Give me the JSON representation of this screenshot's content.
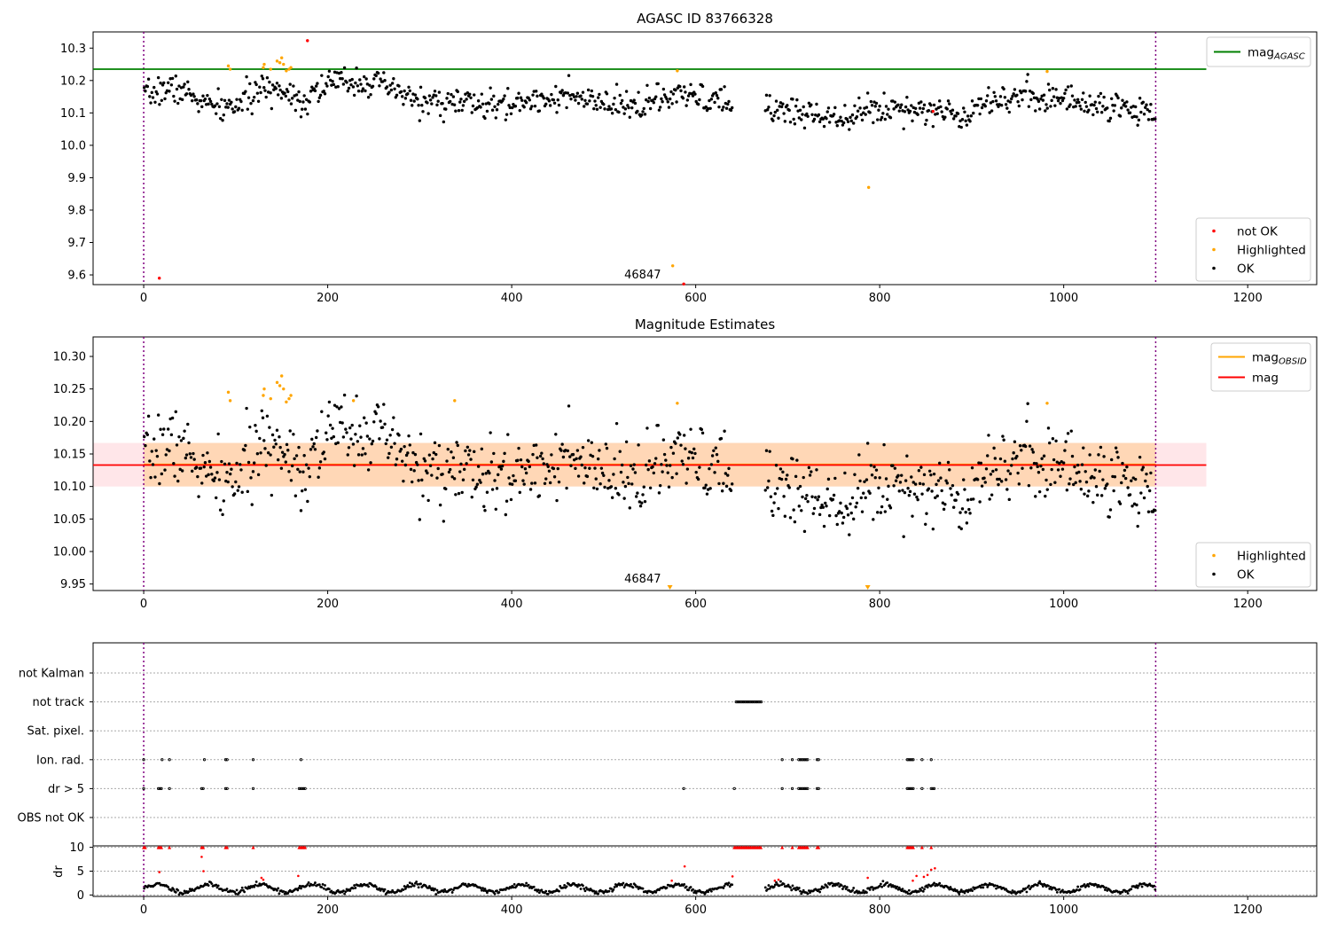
{
  "chart_data": [
    {
      "type": "scatter",
      "title": "AGASC ID 83766328",
      "xlim": [
        -55,
        1275
      ],
      "ylim": [
        9.57,
        10.35
      ],
      "xticks": [
        0,
        200,
        400,
        600,
        800,
        1000,
        1200
      ],
      "yticks": [
        9.6,
        9.7,
        9.8,
        9.9,
        10.0,
        10.1,
        10.2,
        10.3
      ],
      "ytick_decimals": 1,
      "vlines": [
        0,
        1100
      ],
      "hlines": [
        {
          "name": "mag_AGASC",
          "y": 10.235,
          "x": [
            -55,
            1155
          ],
          "color": "#008000"
        }
      ],
      "legend_upper": [
        {
          "label": "mag",
          "sub": "AGASC",
          "kind": "line",
          "color": "#008000"
        }
      ],
      "legend_lower": [
        {
          "label": "not OK",
          "kind": "dot",
          "color": "#ff0000"
        },
        {
          "label": "Highlighted",
          "kind": "dot",
          "color": "#ffa500"
        },
        {
          "label": "OK",
          "kind": "dot",
          "color": "#000000"
        }
      ],
      "annotations": [
        {
          "text": "46847",
          "x": 570,
          "y": 9.6
        }
      ],
      "generated_ok": {
        "x_ranges": [
          [
            0,
            640
          ],
          [
            675,
            1100
          ]
        ],
        "count": 900,
        "base": 10.14,
        "noise": 0.04
      },
      "highlighted": [
        [
          92,
          10.245
        ],
        [
          94,
          10.235
        ],
        [
          130,
          10.24
        ],
        [
          131,
          10.25
        ],
        [
          138,
          10.235
        ],
        [
          145,
          10.26
        ],
        [
          148,
          10.255
        ],
        [
          150,
          10.27
        ],
        [
          152,
          10.25
        ],
        [
          155,
          10.23
        ],
        [
          158,
          10.235
        ],
        [
          160,
          10.24
        ],
        [
          575,
          9.628
        ],
        [
          580,
          10.23
        ],
        [
          788,
          9.87
        ],
        [
          982,
          10.228
        ]
      ],
      "not_ok": [
        [
          17,
          9.59
        ],
        [
          178,
          10.323
        ],
        [
          587,
          9.572
        ],
        [
          858,
          10.105
        ]
      ],
      "grid": false,
      "legend_placement": "upper right / lower right"
    },
    {
      "type": "scatter",
      "title": "Magnitude Estimates",
      "xlim": [
        -55,
        1275
      ],
      "ylim": [
        9.94,
        10.33
      ],
      "xticks": [
        0,
        200,
        400,
        600,
        800,
        1000,
        1200
      ],
      "yticks": [
        9.95,
        10.0,
        10.05,
        10.1,
        10.15,
        10.2,
        10.25,
        10.3
      ],
      "ytick_decimals": 2,
      "vlines": [
        0,
        1100
      ],
      "hlines": [
        {
          "name": "mag",
          "y": 10.133,
          "x": [
            -55,
            1155
          ],
          "color": "#ff0000"
        }
      ],
      "bands": [
        {
          "y": [
            10.1,
            10.167
          ],
          "x": [
            -55,
            1155
          ],
          "color": "#ffb6c1",
          "opacity": 0.35
        },
        {
          "y": [
            10.1,
            10.167
          ],
          "x": [
            0,
            1100
          ],
          "color": "#ffa500",
          "opacity": 0.22
        }
      ],
      "legend_upper": [
        {
          "label": "mag",
          "sub": "OBSID",
          "kind": "line",
          "color": "#ffa500"
        },
        {
          "label": "mag",
          "sub": "",
          "kind": "line",
          "color": "#ff0000"
        }
      ],
      "legend_lower": [
        {
          "label": "Highlighted",
          "kind": "dot",
          "color": "#ffa500"
        },
        {
          "label": "OK",
          "kind": "dot",
          "color": "#000000"
        }
      ],
      "annotations": [
        {
          "text": "46847",
          "x": 570,
          "y": 9.95
        }
      ],
      "generated_ok": {
        "x_ranges": [
          [
            0,
            640
          ],
          [
            675,
            1100
          ]
        ],
        "count": 900,
        "base": 10.13,
        "noise": 0.04
      },
      "highlighted": [
        [
          92,
          10.245
        ],
        [
          94,
          10.232
        ],
        [
          130,
          10.24
        ],
        [
          131,
          10.25
        ],
        [
          138,
          10.235
        ],
        [
          145,
          10.26
        ],
        [
          148,
          10.255
        ],
        [
          150,
          10.27
        ],
        [
          152,
          10.25
        ],
        [
          155,
          10.23
        ],
        [
          158,
          10.235
        ],
        [
          160,
          10.24
        ],
        [
          228,
          10.232
        ],
        [
          338,
          10.232
        ],
        [
          580,
          10.228
        ],
        [
          982,
          10.228
        ]
      ],
      "offscale_markers": [
        [
          572,
          9.94
        ],
        [
          787,
          9.94
        ]
      ],
      "grid": false,
      "legend_placement": "upper right / lower right"
    },
    {
      "type": "scatter",
      "title": "",
      "xlim": [
        -55,
        1275
      ],
      "xticks": [
        0,
        200,
        400,
        600,
        800,
        1000,
        1200
      ],
      "vlines": [
        0,
        1100
      ],
      "flag_rows": [
        "not Kalman",
        "not track",
        "Sat. pixel.",
        "Ion. rad.",
        "dr > 5",
        "OBS not OK"
      ],
      "flag_points": {
        "not track": [
          [
            644,
            672
          ]
        ],
        "Ion. rad.": [
          [
            0,
            0
          ],
          [
            20,
            20
          ],
          [
            28,
            28
          ],
          [
            66,
            66
          ],
          [
            89,
            91
          ],
          [
            119,
            119
          ],
          [
            171,
            171
          ],
          [
            694,
            694
          ],
          [
            705,
            705
          ],
          [
            712,
            722
          ],
          [
            732,
            735
          ],
          [
            830,
            837
          ],
          [
            846,
            846
          ],
          [
            856,
            856
          ]
        ],
        "dr > 5": [
          [
            0,
            0
          ],
          [
            16,
            20
          ],
          [
            28,
            28
          ],
          [
            63,
            66
          ],
          [
            89,
            91
          ],
          [
            119,
            119
          ],
          [
            169,
            176
          ],
          [
            587,
            587
          ],
          [
            642,
            642
          ],
          [
            694,
            694
          ],
          [
            705,
            705
          ],
          [
            712,
            722
          ],
          [
            732,
            735
          ],
          [
            830,
            837
          ],
          [
            846,
            846
          ],
          [
            856,
            860
          ]
        ]
      },
      "dr_ylabel": "dr",
      "dr_ylim": [
        -0.3,
        10.3
      ],
      "dr_yticks": [
        0,
        5,
        10
      ],
      "dr_clipped": [
        [
          0,
          2
        ],
        [
          16,
          20
        ],
        [
          28,
          28
        ],
        [
          63,
          66
        ],
        [
          89,
          91
        ],
        [
          119,
          119
        ],
        [
          169,
          176
        ],
        [
          642,
          672
        ],
        [
          694,
          694
        ],
        [
          705,
          705
        ],
        [
          712,
          722
        ],
        [
          732,
          735
        ],
        [
          830,
          837
        ],
        [
          846,
          846
        ],
        [
          856,
          856
        ]
      ],
      "dr_red": [
        [
          17,
          4.8
        ],
        [
          63,
          8.0
        ],
        [
          65,
          5.0
        ],
        [
          128,
          3.6
        ],
        [
          130,
          3.2
        ],
        [
          168,
          4.0
        ],
        [
          574,
          3.0
        ],
        [
          588,
          6.0
        ],
        [
          640,
          3.9
        ],
        [
          686,
          3.0
        ],
        [
          690,
          3.2
        ],
        [
          787,
          3.6
        ],
        [
          836,
          3.0
        ],
        [
          840,
          4.0
        ],
        [
          848,
          3.8
        ],
        [
          852,
          4.2
        ],
        [
          856,
          5.3
        ],
        [
          860,
          5.6
        ]
      ],
      "dr_generated": {
        "x_ranges": [
          [
            0,
            640
          ],
          [
            675,
            1100
          ]
        ],
        "count": 900
      },
      "grid": true
    }
  ]
}
